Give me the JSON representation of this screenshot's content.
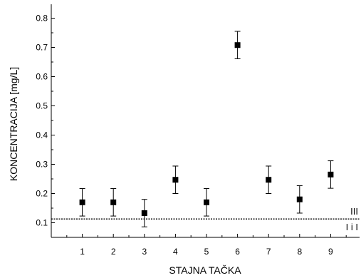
{
  "chart_data": {
    "type": "scatter",
    "title": "",
    "xlabel": "STAJNA TAČKA",
    "ylabel": "KONCENTRACIJA [mg/L]",
    "xlim": [
      0,
      10
    ],
    "ylim": [
      0.05,
      0.85
    ],
    "x_ticks": [
      1,
      2,
      3,
      4,
      5,
      6,
      7,
      8,
      9
    ],
    "y_ticks": [
      0.1,
      0.2,
      0.3,
      0.4,
      0.5,
      0.6,
      0.7,
      0.8
    ],
    "grid": false,
    "series": [
      {
        "x": [
          1,
          2,
          3,
          4,
          5,
          6,
          7,
          8,
          9
        ],
        "y": [
          0.17,
          0.17,
          0.133,
          0.247,
          0.17,
          0.708,
          0.247,
          0.18,
          0.265
        ],
        "error": [
          0.047,
          0.047,
          0.047,
          0.047,
          0.047,
          0.047,
          0.047,
          0.047,
          0.047
        ],
        "marker": "square",
        "color": "#000000"
      }
    ],
    "reference_lines": [
      {
        "y": 0.113,
        "style": "dotted",
        "labels": [
          "III",
          "I i I"
        ]
      }
    ]
  }
}
